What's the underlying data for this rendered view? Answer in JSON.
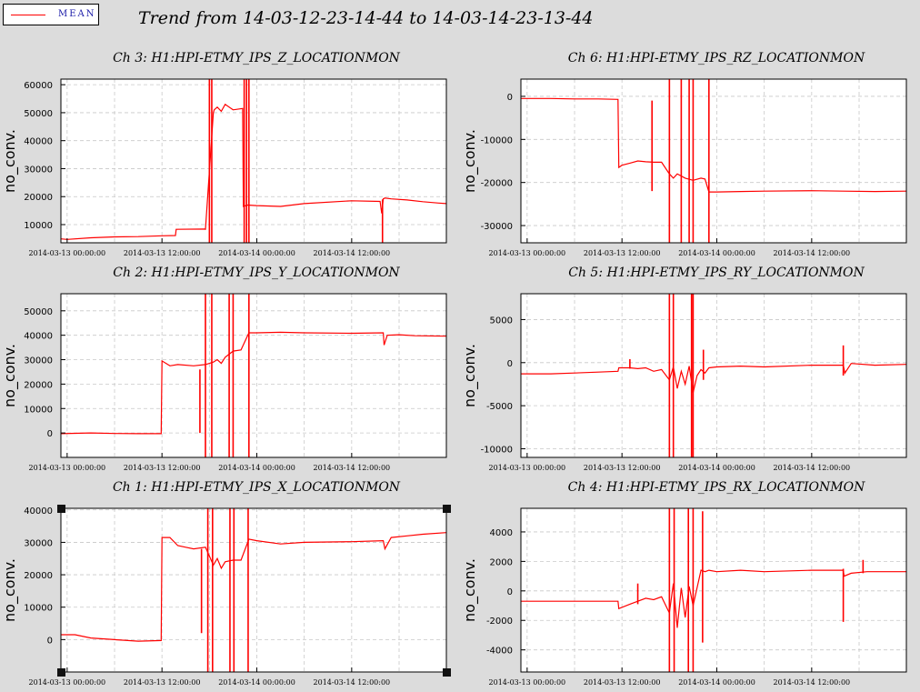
{
  "legend": {
    "label": "MEAN",
    "color": "#ff0000"
  },
  "title": "Trend from 14-03-12-23-14-44 to 14-03-14-23-13-44",
  "chart_data": [
    {
      "type": "line",
      "title": "Ch 3: H1:HPI-ETMY_IPS_Z_LOCATIONMON",
      "ylabel": "no_conv.",
      "ylim": [
        3500,
        62000
      ],
      "yticks": [
        10000,
        20000,
        30000,
        40000,
        50000,
        60000
      ],
      "xticks": [
        "2014-03-13 00:00:00",
        "2014-03-13 12:00:00",
        "2014-03-14 00:00:00",
        "2014-03-14 12:00:00"
      ],
      "xlim": [
        -0.7875,
        47.98
      ],
      "grid": true,
      "series": [
        {
          "x": [
            -0.79,
            0,
            3,
            6,
            9,
            12,
            13.7,
            13.8,
            17.4,
            17.5,
            18.5,
            18.6,
            19,
            19.5,
            20,
            21,
            22.2,
            22.3,
            22.8,
            24,
            27,
            30,
            36,
            39.6,
            39.8,
            40,
            40.2,
            41,
            43,
            45,
            47,
            47.98
          ],
          "y": [
            4900,
            4700,
            5300,
            5600,
            5700,
            6000,
            6100,
            8300,
            8400,
            8300,
            50000,
            51000,
            52000,
            50500,
            53000,
            51000,
            51500,
            16500,
            17000,
            16800,
            16500,
            17500,
            18500,
            18300,
            14000,
            19200,
            19500,
            19200,
            18800,
            18200,
            17700,
            17500
          ],
          "spikes": [
            {
              "x": 18.0,
              "ymin": 3500,
              "ymax": 62000
            },
            {
              "x": 18.3,
              "ymin": 3500,
              "ymax": 62000
            },
            {
              "x": 22.4,
              "ymin": 3500,
              "ymax": 62000
            },
            {
              "x": 22.7,
              "ymin": 3500,
              "ymax": 62000
            },
            {
              "x": 23.0,
              "ymin": 3500,
              "ymax": 62000
            },
            {
              "x": 39.9,
              "ymin": 3500,
              "ymax": 19000
            }
          ]
        }
      ]
    },
    {
      "type": "line",
      "title": "Ch 6: H1:HPI-ETMY_IPS_RZ_LOCATIONMON",
      "ylabel": "no_conv.",
      "ylim": [
        -34000,
        4000
      ],
      "yticks": [
        0,
        -10000,
        -20000,
        -30000
      ],
      "xticks": [
        "2014-03-13 00:00:00",
        "2014-03-13 12:00:00",
        "2014-03-14 00:00:00",
        "2014-03-14 12:00:00"
      ],
      "xlim": [
        -0.7875,
        47.98
      ],
      "grid": true,
      "series": [
        {
          "x": [
            -0.79,
            3,
            6,
            9,
            11.5,
            11.6,
            12,
            13,
            14,
            15,
            16,
            17,
            18,
            18.5,
            19,
            20,
            21,
            22,
            22.5,
            23,
            23.5,
            24,
            27,
            30,
            36,
            40,
            44,
            47.98
          ],
          "y": [
            -500,
            -500,
            -600,
            -600,
            -700,
            -16500,
            -16000,
            -15500,
            -15000,
            -15200,
            -15300,
            -15300,
            -18000,
            -19000,
            -18000,
            -19000,
            -19500,
            -19000,
            -19200,
            -22200,
            -22200,
            -22200,
            -22100,
            -22000,
            -21900,
            -22000,
            -22100,
            -22000
          ],
          "spikes": [
            {
              "x": 15.8,
              "ymin": -22000,
              "ymax": -1000
            },
            {
              "x": 18.0,
              "ymin": -34000,
              "ymax": 4000
            },
            {
              "x": 19.5,
              "ymin": -34000,
              "ymax": 4000
            },
            {
              "x": 20.5,
              "ymin": -34000,
              "ymax": 4000
            },
            {
              "x": 21.0,
              "ymin": -34000,
              "ymax": 4000
            },
            {
              "x": 23.0,
              "ymin": -34000,
              "ymax": 4000
            }
          ]
        }
      ]
    },
    {
      "type": "line",
      "title": "Ch 2: H1:HPI-ETMY_IPS_Y_LOCATIONMON",
      "ylabel": "no_conv.",
      "ylim": [
        -10000,
        57000
      ],
      "yticks": [
        0,
        10000,
        20000,
        30000,
        40000,
        50000
      ],
      "xticks": [
        "2014-03-13 00:00:00",
        "2014-03-13 12:00:00",
        "2014-03-14 00:00:00",
        "2014-03-14 12:00:00"
      ],
      "xlim": [
        -0.7875,
        47.98
      ],
      "grid": true,
      "series": [
        {
          "x": [
            -0.79,
            3,
            6,
            9,
            11.9,
            12,
            13,
            14,
            16,
            17.5,
            18.5,
            19,
            19.5,
            20,
            21,
            22,
            23,
            24,
            27,
            30,
            36,
            40,
            40.1,
            40.5,
            42,
            44,
            47.98
          ],
          "y": [
            -300,
            0,
            -200,
            -300,
            -300,
            29500,
            27500,
            28000,
            27500,
            28000,
            29000,
            30000,
            28500,
            31000,
            33500,
            34000,
            41000,
            41000,
            41200,
            41000,
            40800,
            41000,
            36000,
            40000,
            40200,
            39800,
            39600
          ],
          "spikes": [
            {
              "x": 16.8,
              "ymin": 0,
              "ymax": 26000
            },
            {
              "x": 17.5,
              "ymin": -10000,
              "ymax": 57000
            },
            {
              "x": 18.3,
              "ymin": -10000,
              "ymax": 57000
            },
            {
              "x": 20.5,
              "ymin": -10000,
              "ymax": 57000
            },
            {
              "x": 21.0,
              "ymin": -10000,
              "ymax": 57000
            },
            {
              "x": 23.0,
              "ymin": -10000,
              "ymax": 57000
            }
          ]
        }
      ]
    },
    {
      "type": "line",
      "title": "Ch 5: H1:HPI-ETMY_IPS_RY_LOCATIONMON",
      "ylabel": "no_conv.",
      "ylim": [
        -11000,
        8000
      ],
      "yticks": [
        5000,
        0,
        -5000,
        -10000
      ],
      "xticks": [
        "2014-03-13 00:00:00",
        "2014-03-13 12:00:00",
        "2014-03-14 00:00:00",
        "2014-03-14 12:00:00"
      ],
      "xlim": [
        -0.7875,
        47.98
      ],
      "grid": true,
      "series": [
        {
          "x": [
            -0.79,
            3,
            6,
            9,
            11.5,
            11.6,
            13,
            14,
            15,
            16,
            17,
            18,
            18.5,
            19,
            19.5,
            20,
            20.5,
            21,
            21.5,
            22,
            22.5,
            23,
            24,
            27,
            30,
            36,
            40,
            40.2,
            41,
            44,
            47.98
          ],
          "y": [
            -1300,
            -1300,
            -1200,
            -1100,
            -1000,
            -600,
            -600,
            -700,
            -600,
            -1000,
            -800,
            -2000,
            -500,
            -3000,
            -1000,
            -2500,
            -400,
            -3500,
            -1500,
            -800,
            -1200,
            -600,
            -500,
            -400,
            -500,
            -300,
            -300,
            -1200,
            -100,
            -300,
            -200
          ],
          "spikes": [
            {
              "x": 13.0,
              "ymin": -700,
              "ymax": 400
            },
            {
              "x": 18.0,
              "ymin": -11000,
              "ymax": 8000
            },
            {
              "x": 18.5,
              "ymin": -11000,
              "ymax": 8000
            },
            {
              "x": 20.8,
              "ymin": -11000,
              "ymax": 8000
            },
            {
              "x": 21.0,
              "ymin": -11000,
              "ymax": 8000
            },
            {
              "x": 22.3,
              "ymin": -2000,
              "ymax": 1500
            },
            {
              "x": 40.0,
              "ymin": -1500,
              "ymax": 2000
            }
          ]
        }
      ]
    },
    {
      "type": "line",
      "title": "Ch 1: H1:HPI-ETMY_IPS_X_LOCATIONMON",
      "ylabel": "no_conv.",
      "ylim": [
        -10000,
        40500
      ],
      "yticks": [
        0,
        10000,
        20000,
        30000,
        40000
      ],
      "xticks": [
        "2014-03-13 00:00:00",
        "2014-03-13 12:00:00",
        "2014-03-14 00:00:00",
        "2014-03-14 12:00:00"
      ],
      "xlim": [
        -0.7875,
        47.98
      ],
      "grid": true,
      "series": [
        {
          "x": [
            -0.79,
            1,
            3,
            6,
            9,
            11.9,
            12,
            13,
            14,
            15,
            16,
            17.5,
            18.5,
            19,
            19.5,
            20,
            21,
            22,
            23,
            24,
            27,
            30,
            36,
            40,
            40.2,
            41,
            43,
            45,
            47.98
          ],
          "y": [
            1500,
            1500,
            500,
            0,
            -500,
            -300,
            31500,
            31500,
            29000,
            28500,
            28000,
            28500,
            23000,
            25000,
            22000,
            24000,
            24500,
            24500,
            31000,
            30500,
            29500,
            30000,
            30200,
            30500,
            28000,
            31500,
            32000,
            32500,
            33000
          ],
          "spikes": [
            {
              "x": 17.0,
              "ymin": 2000,
              "ymax": 28000
            },
            {
              "x": 17.8,
              "ymin": -10000,
              "ymax": 40500
            },
            {
              "x": 18.4,
              "ymin": -10000,
              "ymax": 40500
            },
            {
              "x": 20.6,
              "ymin": -10000,
              "ymax": 40500
            },
            {
              "x": 21.1,
              "ymin": -10000,
              "ymax": 40500
            },
            {
              "x": 22.9,
              "ymin": -10000,
              "ymax": 40500
            }
          ]
        }
      ]
    },
    {
      "type": "line",
      "title": "Ch 4: H1:HPI-ETMY_IPS_RX_LOCATIONMON",
      "ylabel": "no_conv.",
      "ylim": [
        -5500,
        5600
      ],
      "yticks": [
        4000,
        2000,
        0,
        -2000,
        -4000
      ],
      "xticks": [
        "2014-03-13 00:00:00",
        "2014-03-13 12:00:00",
        "2014-03-14 00:00:00",
        "2014-03-14 12:00:00"
      ],
      "xlim": [
        -0.7875,
        47.98
      ],
      "grid": true,
      "series": [
        {
          "x": [
            -0.79,
            3,
            6,
            9,
            11.5,
            11.6,
            13,
            14,
            15,
            16,
            17,
            18,
            18.5,
            19,
            19.5,
            20,
            20.5,
            21,
            22,
            22.5,
            23,
            24,
            27,
            30,
            36,
            40,
            40.1,
            41,
            43,
            45,
            47.98
          ],
          "y": [
            -700,
            -700,
            -700,
            -700,
            -700,
            -1200,
            -900,
            -700,
            -500,
            -600,
            -400,
            -1500,
            500,
            -2500,
            200,
            -1800,
            300,
            -1000,
            1400,
            1300,
            1400,
            1300,
            1400,
            1300,
            1400,
            1400,
            1000,
            1200,
            1300,
            1300,
            1300
          ],
          "spikes": [
            {
              "x": 14.0,
              "ymin": -900,
              "ymax": 500
            },
            {
              "x": 18.0,
              "ymin": -5500,
              "ymax": 5600
            },
            {
              "x": 18.6,
              "ymin": -5500,
              "ymax": 5600
            },
            {
              "x": 20.4,
              "ymin": -5500,
              "ymax": 5600
            },
            {
              "x": 21.0,
              "ymin": -5500,
              "ymax": 5600
            },
            {
              "x": 22.2,
              "ymin": -3500,
              "ymax": 5400
            },
            {
              "x": 40.0,
              "ymin": -2100,
              "ymax": 1500
            },
            {
              "x": 42.5,
              "ymin": 1200,
              "ymax": 2100
            }
          ]
        }
      ]
    }
  ]
}
